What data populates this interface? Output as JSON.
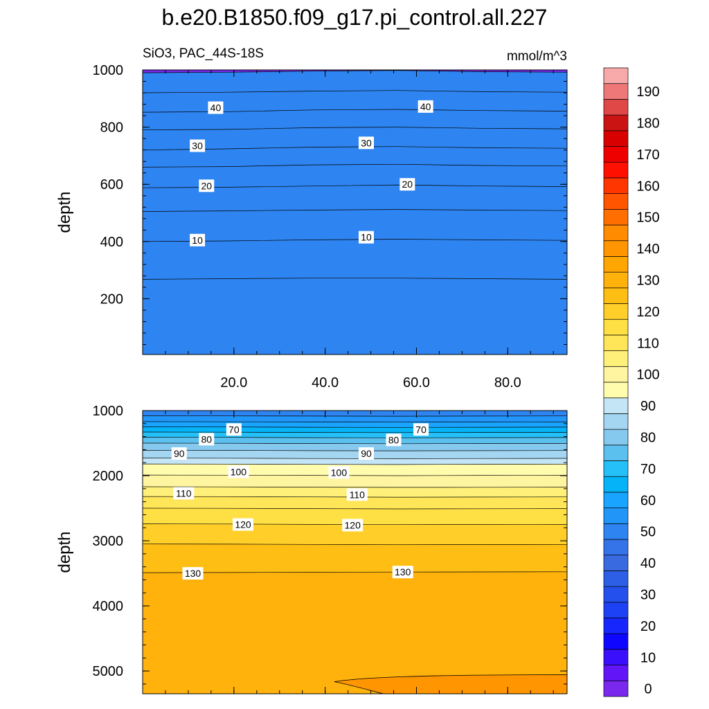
{
  "chart_data": {
    "type": "contour",
    "title": "b.e20.B1850.f09_g17.pi_control.all.227",
    "subtitle_left": "SiO3, PAC_44S-18S",
    "subtitle_right": "mmol/m^3",
    "colorbar": {
      "levels": [
        0,
        5,
        10,
        15,
        20,
        25,
        30,
        35,
        40,
        45,
        50,
        55,
        60,
        65,
        70,
        75,
        80,
        85,
        90,
        95,
        100,
        105,
        110,
        115,
        120,
        125,
        130,
        135,
        140,
        145,
        150,
        155,
        160,
        165,
        170,
        175,
        180,
        185,
        190,
        195
      ],
      "tick_labels": [
        "0",
        "10",
        "20",
        "30",
        "40",
        "50",
        "60",
        "70",
        "80",
        "90",
        "100",
        "110",
        "120",
        "130",
        "140",
        "150",
        "160",
        "170",
        "180",
        "190"
      ],
      "colors": [
        "#7a28ee",
        "#6216f8",
        "#3a10fc",
        "#0e06ff",
        "#1626fc",
        "#1d41f4",
        "#2451ee",
        "#2c5fe6",
        "#3a6ae0",
        "#3573e8",
        "#2e84f0",
        "#2196f8",
        "#19a4ff",
        "#05b4f8",
        "#26c0f8",
        "#5cc0ee",
        "#86c9ef",
        "#a4d6f2",
        "#c4e5f6",
        "#fffcae",
        "#fff5a0",
        "#fff07a",
        "#ffe558",
        "#ffe044",
        "#ffce28",
        "#ffbe14",
        "#ffb20c",
        "#ffa602",
        "#ff9500",
        "#ff8c00",
        "#ff6e00",
        "#ff5400",
        "#ff3600",
        "#ff1000",
        "#ef0000",
        "#d80000",
        "#ca1414",
        "#e04848",
        "#ee7878",
        "#f8aaaa"
      ]
    },
    "panels": [
      {
        "name": "upper",
        "ylabel": "depth",
        "xlabel": "",
        "xlim": [
          0,
          93
        ],
        "ylim": [
          1000,
          5
        ],
        "x_ticks": [
          "20.0",
          "40.0",
          "60.0",
          "80.0"
        ],
        "x_tick_values": [
          20,
          40,
          60,
          80
        ],
        "y_ticks": [
          "200",
          "400",
          "600",
          "800",
          "1000"
        ],
        "y_tick_values": [
          200,
          400,
          600,
          800,
          1000
        ],
        "contours": [
          {
            "level": 5,
            "depths": [
              268,
              270,
              272,
              272,
              270,
              268
            ]
          },
          {
            "level": 10,
            "depths": [
              400,
              402,
              406,
              408,
              406,
              404
            ]
          },
          {
            "level": 15,
            "depths": [
              505,
              507,
              510,
              512,
              510,
              508
            ]
          },
          {
            "level": 20,
            "depths": [
              588,
              590,
              594,
              598,
              594,
              592
            ]
          },
          {
            "level": 25,
            "depths": [
              660,
              662,
              668,
              670,
              666,
              664
            ]
          },
          {
            "level": 30,
            "depths": [
              720,
              724,
              730,
              732,
              728,
              726
            ]
          },
          {
            "level": 35,
            "depths": [
              790,
              792,
              798,
              800,
              796,
              794
            ]
          },
          {
            "level": 40,
            "depths": [
              852,
              854,
              860,
              862,
              858,
              856
            ]
          },
          {
            "level": 45,
            "depths": [
              920,
              922,
              926,
              928,
              924,
              922
            ]
          },
          {
            "level": 50,
            "depths": [
              990,
              992,
              996,
              998,
              994,
              992
            ]
          }
        ],
        "contour_labels": [
          {
            "text": "10",
            "x": 12,
            "y": 405
          },
          {
            "text": "10",
            "x": 49,
            "y": 415
          },
          {
            "text": "20",
            "x": 14,
            "y": 595
          },
          {
            "text": "20",
            "x": 58,
            "y": 600
          },
          {
            "text": "30",
            "x": 12,
            "y": 735
          },
          {
            "text": "30",
            "x": 49,
            "y": 745
          },
          {
            "text": "40",
            "x": 16,
            "y": 868
          },
          {
            "text": "40",
            "x": 62,
            "y": 872
          }
        ]
      },
      {
        "name": "lower",
        "ylabel": "depth",
        "xlabel": "",
        "xlim": [
          0,
          93
        ],
        "ylim": [
          1000,
          5350
        ],
        "x_ticks": [],
        "x_tick_values": [
          20,
          40,
          60,
          80
        ],
        "y_ticks": [
          "1000",
          "2000",
          "3000",
          "4000",
          "5000"
        ],
        "y_tick_values": [
          1000,
          2000,
          3000,
          4000,
          5000
        ],
        "contours": [
          {
            "level": 55,
            "depths": [
              1080,
              1082,
              1084,
              1086,
              1084,
              1082
            ]
          },
          {
            "level": 60,
            "depths": [
              1170,
              1172,
              1176,
              1178,
              1176,
              1174
            ]
          },
          {
            "level": 65,
            "depths": [
              1250,
              1252,
              1256,
              1258,
              1256,
              1254
            ]
          },
          {
            "level": 70,
            "depths": [
              1330,
              1332,
              1336,
              1338,
              1336,
              1334
            ]
          },
          {
            "level": 75,
            "depths": [
              1410,
              1412,
              1416,
              1418,
              1416,
              1414
            ]
          },
          {
            "level": 80,
            "depths": [
              1500,
              1502,
              1506,
              1508,
              1506,
              1504
            ]
          },
          {
            "level": 85,
            "depths": [
              1610,
              1612,
              1616,
              1618,
              1616,
              1614
            ]
          },
          {
            "level": 90,
            "depths": [
              1730,
              1732,
              1736,
              1738,
              1736,
              1734
            ]
          },
          {
            "level": 95,
            "depths": [
              1820,
              1822,
              1826,
              1828,
              1824,
              1822
            ]
          },
          {
            "level": 100,
            "depths": [
              1990,
              1992,
              1996,
              2000,
              1996,
              1994
            ]
          },
          {
            "level": 105,
            "depths": [
              2170,
              2172,
              2176,
              2180,
              2178,
              2176
            ]
          },
          {
            "level": 110,
            "depths": [
              2320,
              2322,
              2326,
              2330,
              2328,
              2326
            ]
          },
          {
            "level": 115,
            "depths": [
              2500,
              2502,
              2506,
              2510,
              2508,
              2506
            ]
          },
          {
            "level": 120,
            "depths": [
              2740,
              2742,
              2748,
              2752,
              2750,
              2748
            ]
          },
          {
            "level": 125,
            "depths": [
              3050,
              3052,
              3056,
              3060,
              3058,
              3056
            ]
          },
          {
            "level": 130,
            "depths": [
              3490,
              3488,
              3482,
              3480,
              3478,
              3476
            ]
          },
          {
            "level": 135,
            "depths": [
              5350,
              5350,
              5350,
              5350,
              5350,
              5350
            ]
          }
        ],
        "contour_labels": [
          {
            "text": "70",
            "x": 20,
            "y": 1290
          },
          {
            "text": "70",
            "x": 61,
            "y": 1290
          },
          {
            "text": "80",
            "x": 14,
            "y": 1440
          },
          {
            "text": "80",
            "x": 55,
            "y": 1450
          },
          {
            "text": "90",
            "x": 8,
            "y": 1660
          },
          {
            "text": "90",
            "x": 49,
            "y": 1660
          },
          {
            "text": "100",
            "x": 21,
            "y": 1940
          },
          {
            "text": "100",
            "x": 43,
            "y": 1950
          },
          {
            "text": "110",
            "x": 9,
            "y": 2270
          },
          {
            "text": "110",
            "x": 47,
            "y": 2290
          },
          {
            "text": "120",
            "x": 22,
            "y": 2750
          },
          {
            "text": "120",
            "x": 46,
            "y": 2760
          },
          {
            "text": "130",
            "x": 11,
            "y": 3500
          },
          {
            "text": "130",
            "x": 57,
            "y": 3480
          }
        ],
        "bottom_feature": {
          "level": 140,
          "x_range": [
            42,
            93
          ],
          "top_depth": 5100
        }
      }
    ]
  }
}
